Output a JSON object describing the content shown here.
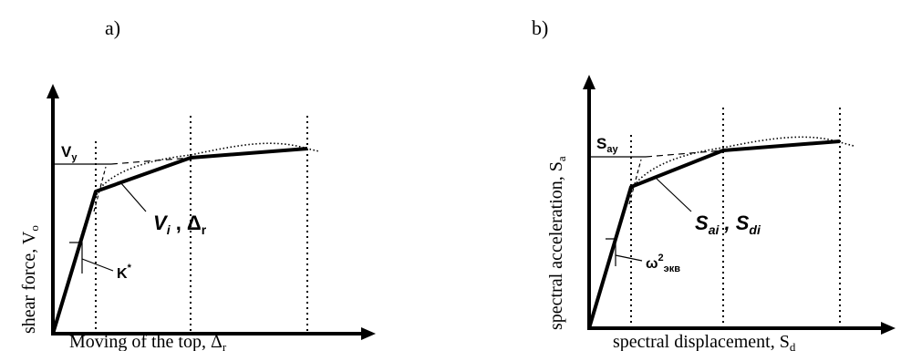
{
  "panel_a": {
    "letter": "a)",
    "y_axis_label": "shear force, V",
    "y_axis_sub": "o",
    "x_axis_label": "Moving of the top, Δ",
    "x_axis_sub": "r",
    "yield_label": "V",
    "yield_sub": "y",
    "point_label_main": "V",
    "point_label_main_sub": "i",
    "point_label_sep": " , Δ",
    "point_label_sep_sub": "r",
    "stiffness_label": "K",
    "stiffness_sup": "*"
  },
  "panel_b": {
    "letter": "b)",
    "y_axis_label": "spectral acceleration, S",
    "y_axis_sub": "a",
    "x_axis_label": "spectral displacement, S",
    "x_axis_sub": "d",
    "yield_label": "S",
    "yield_sub": "ay",
    "point_label_main": "S",
    "point_label_main_sub": "ai",
    "point_label_sep": " , S",
    "point_label_sep_sub": "di",
    "stiffness_label": "ω",
    "stiffness_sup": "2",
    "stiffness_sub": "экв"
  }
}
